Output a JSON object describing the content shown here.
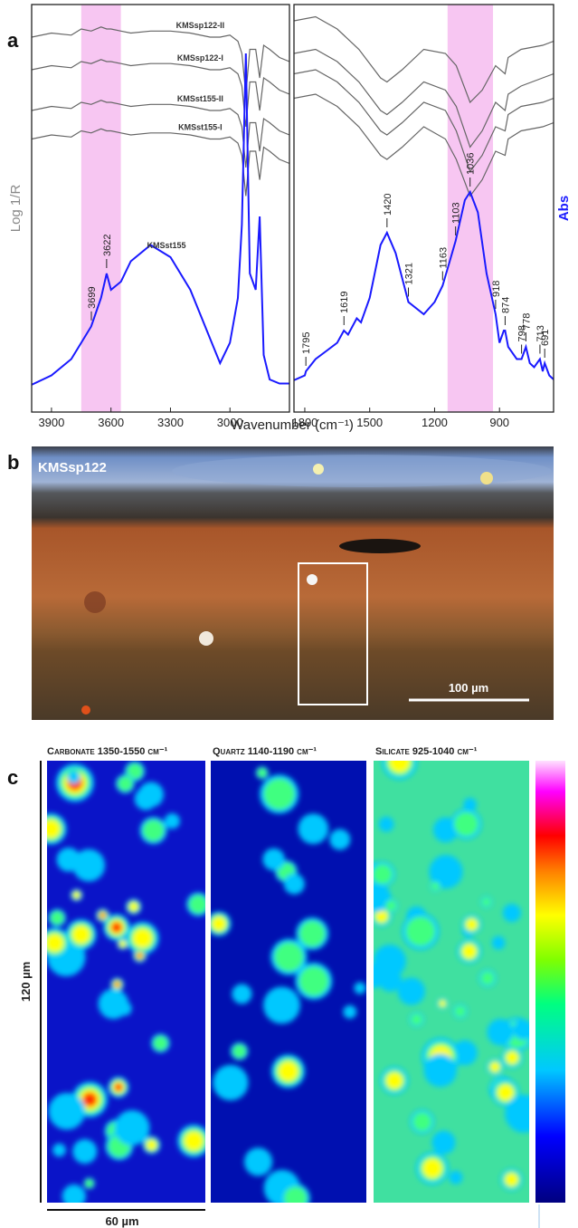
{
  "chart_data": [
    {
      "type": "line",
      "y_label": "Log 1/R",
      "y_label_color": "#888888",
      "xlim": [
        4000,
        2700
      ],
      "xticks": [
        3900,
        3600,
        3300,
        3000
      ],
      "ylim": [
        0,
        10
      ],
      "highlight": [
        3750,
        3550
      ],
      "highlight_color": "#f7c6f2",
      "x": [
        4000,
        3900,
        3800,
        3750,
        3700,
        3650,
        3622,
        3600,
        3550,
        3500,
        3400,
        3300,
        3200,
        3100,
        3050,
        3000,
        2960,
        2940,
        2920,
        2900,
        2870,
        2850,
        2830,
        2800,
        2750,
        2700
      ],
      "series": [
        {
          "name": "KMSsp122-II",
          "color": "#666666",
          "values": [
            9.2,
            9.3,
            9.25,
            9.4,
            9.35,
            9.45,
            9.4,
            9.4,
            9.35,
            9.3,
            9.35,
            9.35,
            9.3,
            9.2,
            9.2,
            9.25,
            9.1,
            8.8,
            7.8,
            8.9,
            8.9,
            8.2,
            9.0,
            8.9,
            8.7,
            8.6
          ]
        },
        {
          "name": "KMSsp122-I",
          "color": "#666666",
          "values": [
            8.4,
            8.5,
            8.45,
            8.6,
            8.55,
            8.65,
            8.6,
            8.6,
            8.55,
            8.5,
            8.55,
            8.55,
            8.5,
            8.4,
            8.4,
            8.45,
            8.3,
            8.0,
            7.0,
            8.1,
            8.1,
            7.4,
            8.2,
            8.1,
            7.9,
            7.8
          ]
        },
        {
          "name": "KMSst155-II",
          "color": "#666666",
          "values": [
            7.4,
            7.5,
            7.45,
            7.6,
            7.55,
            7.65,
            7.6,
            7.6,
            7.55,
            7.5,
            7.55,
            7.55,
            7.5,
            7.4,
            7.4,
            7.45,
            7.3,
            7.0,
            6.0,
            7.1,
            7.1,
            6.4,
            7.2,
            7.1,
            6.9,
            6.8
          ]
        },
        {
          "name": "KMSst155-I",
          "color": "#666666",
          "values": [
            6.7,
            6.8,
            6.75,
            6.9,
            6.85,
            6.95,
            6.9,
            6.9,
            6.85,
            6.8,
            6.85,
            6.85,
            6.8,
            6.7,
            6.7,
            6.75,
            6.6,
            6.3,
            5.3,
            6.4,
            6.4,
            5.7,
            6.5,
            6.4,
            6.2,
            6.1
          ]
        },
        {
          "name": "KMSst155",
          "color": "#1a1aff",
          "values": [
            0.67,
            0.9,
            1.3,
            1.7,
            2.1,
            2.8,
            3.4,
            3.0,
            3.2,
            3.7,
            4.1,
            3.8,
            3.0,
            1.8,
            1.2,
            1.7,
            2.8,
            4.6,
            8.8,
            3.4,
            3.0,
            4.8,
            1.4,
            0.8,
            0.7,
            0.7
          ]
        }
      ],
      "peak_labels": [
        3699,
        3622
      ]
    },
    {
      "type": "line",
      "y_label": "Abs",
      "y_label_color": "#1a1aff",
      "xlim": [
        1850,
        650
      ],
      "xticks": [
        1800,
        1500,
        1200,
        900
      ],
      "ylim": [
        0,
        10
      ],
      "highlight": [
        1140,
        930
      ],
      "highlight_color": "#f7c6f2",
      "x": [
        1850,
        1750,
        1650,
        1550,
        1450,
        1420,
        1350,
        1250,
        1150,
        1100,
        1036,
        980,
        918,
        874,
        860,
        800,
        700,
        650
      ],
      "series": [
        {
          "color": "#666666",
          "values": [
            9.6,
            9.7,
            9.4,
            8.9,
            8.2,
            8.1,
            8.4,
            8.9,
            8.8,
            8.5,
            7.6,
            7.9,
            8.5,
            8.3,
            8.7,
            8.9,
            9.0,
            9.1
          ]
        },
        {
          "color": "#666666",
          "values": [
            8.8,
            8.9,
            8.6,
            8.1,
            7.4,
            7.3,
            7.6,
            8.1,
            7.9,
            7.5,
            6.5,
            6.9,
            7.6,
            7.4,
            7.8,
            8.0,
            8.2,
            8.3
          ]
        },
        {
          "color": "#666666",
          "values": [
            8.3,
            8.4,
            8.1,
            7.6,
            6.9,
            6.8,
            7.1,
            7.6,
            7.4,
            6.9,
            5.9,
            6.3,
            7.0,
            6.9,
            7.3,
            7.5,
            7.6,
            7.7
          ]
        },
        {
          "color": "#666666",
          "values": [
            7.7,
            7.8,
            7.5,
            7.0,
            6.3,
            6.2,
            6.5,
            7.0,
            6.7,
            6.2,
            5.3,
            5.7,
            6.4,
            6.3,
            6.7,
            6.9,
            7.0,
            7.1
          ]
        },
        {
          "color": "#1a1aff",
          "x": [
            1850,
            1800,
            1795,
            1750,
            1700,
            1650,
            1619,
            1600,
            1560,
            1540,
            1500,
            1450,
            1420,
            1380,
            1321,
            1250,
            1200,
            1163,
            1130,
            1103,
            1060,
            1036,
            1000,
            960,
            918,
            900,
            880,
            874,
            860,
            820,
            798,
            778,
            760,
            740,
            713,
            700,
            691,
            670,
            650
          ],
          "values": [
            0.78,
            0.9,
            1.0,
            1.3,
            1.5,
            1.7,
            2.0,
            1.9,
            2.3,
            2.2,
            2.8,
            4.1,
            4.4,
            3.9,
            2.7,
            2.4,
            2.7,
            3.1,
            3.7,
            4.2,
            5.2,
            5.4,
            4.9,
            3.4,
            2.4,
            1.7,
            2.0,
            2.0,
            1.6,
            1.3,
            1.3,
            1.6,
            1.2,
            1.1,
            1.3,
            1.0,
            1.2,
            0.9,
            0.8
          ]
        }
      ],
      "peak_labels": [
        1795,
        1619,
        1420,
        1321,
        1163,
        1103,
        1036,
        918,
        874,
        798,
        778,
        713,
        691
      ]
    }
  ],
  "shared_x_label": "Wavenumber (cm⁻¹)",
  "panel_labels": [
    "a",
    "b",
    "c"
  ],
  "micrograph": {
    "label": "KMSsp122",
    "scale_bar": "100 µm"
  },
  "maps": {
    "titles": [
      "Carbonate 1350-1550 cm⁻¹",
      "Quartz 1140-1190 cm⁻¹",
      "Silicate 925-1040 cm⁻¹"
    ],
    "height_label": "120 µm",
    "scale_bar": "60 µm"
  }
}
